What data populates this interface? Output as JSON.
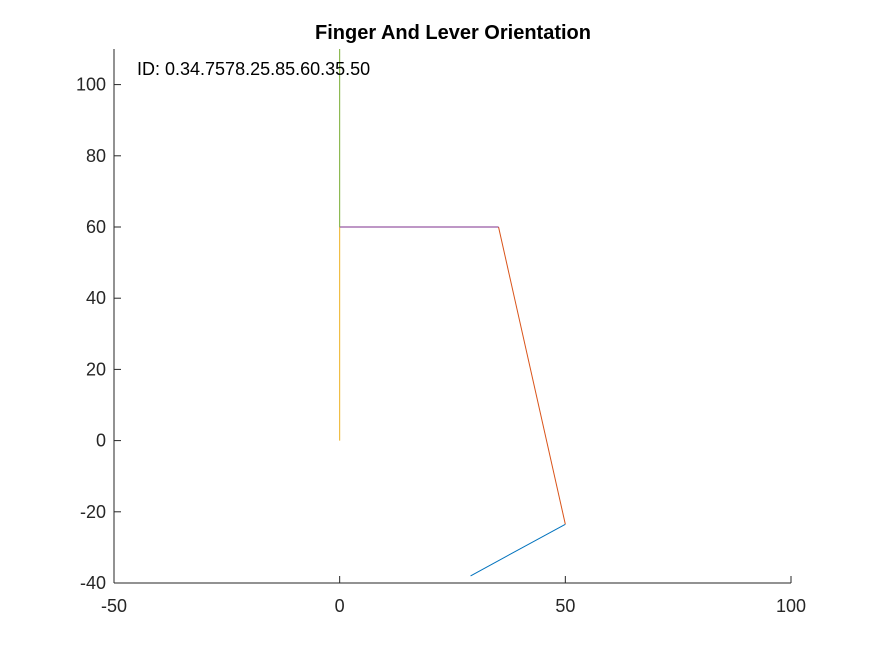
{
  "chart_data": {
    "type": "line",
    "title": "Finger And Lever Orientation",
    "annotation": "ID: 0.34.7578.25.85.60.35.50",
    "xlabel": "",
    "ylabel": "",
    "xlim": [
      -50,
      100
    ],
    "ylim": [
      -40,
      110
    ],
    "xticks": [
      -50,
      0,
      50,
      100
    ],
    "yticks": [
      -40,
      -20,
      0,
      20,
      40,
      60,
      80,
      100
    ],
    "grid": false,
    "series": [
      {
        "color": "#0072BD",
        "x": [
          29,
          50
        ],
        "y": [
          -38,
          -23.5
        ]
      },
      {
        "color": "#D95319",
        "x": [
          50,
          35.2
        ],
        "y": [
          -23.5,
          60
        ]
      },
      {
        "color": "#EDB120",
        "x": [
          0,
          0
        ],
        "y": [
          0,
          60
        ]
      },
      {
        "color": "#7E2F8E",
        "x": [
          0,
          35.2
        ],
        "y": [
          60,
          60
        ]
      },
      {
        "color": "#77AC30",
        "x": [
          0,
          0
        ],
        "y": [
          60,
          110
        ]
      }
    ]
  }
}
